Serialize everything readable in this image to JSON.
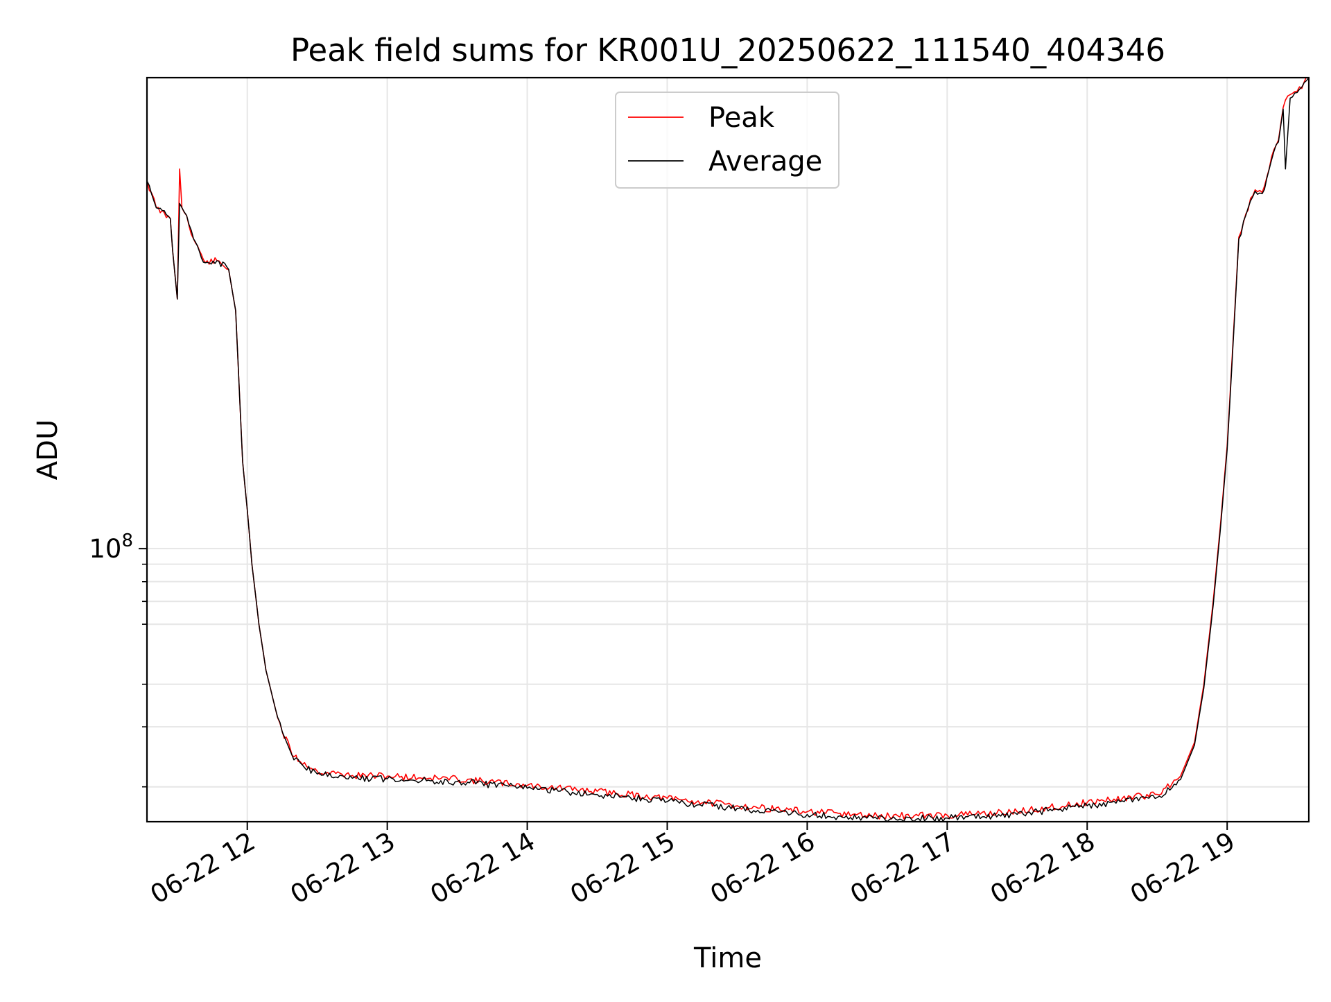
{
  "chart_data": {
    "type": "line",
    "title": "Peak field sums for KR001U_20250622_111540_404346",
    "xlabel": "Time",
    "ylabel": "ADU",
    "y_scale": "log",
    "y_tick_major": {
      "base": "10",
      "exponent": "8",
      "value": 100000000
    },
    "y_minor_ticks": [
      20000000,
      30000000,
      40000000,
      60000000,
      70000000,
      80000000,
      90000000
    ],
    "ylim": [
      15800000,
      2410000000
    ],
    "xlim": [
      "2025-06-22 11:17",
      "2025-06-22 19:35"
    ],
    "x_ticks": [
      {
        "at": "2025-06-22 12:00",
        "label": "06-22 12"
      },
      {
        "at": "2025-06-22 13:00",
        "label": "06-22 13"
      },
      {
        "at": "2025-06-22 14:00",
        "label": "06-22 14"
      },
      {
        "at": "2025-06-22 15:00",
        "label": "06-22 15"
      },
      {
        "at": "2025-06-22 16:00",
        "label": "06-22 16"
      },
      {
        "at": "2025-06-22 17:00",
        "label": "06-22 17"
      },
      {
        "at": "2025-06-22 18:00",
        "label": "06-22 18"
      },
      {
        "at": "2025-06-22 19:00",
        "label": "06-22 19"
      }
    ],
    "grid": true,
    "legend_position": "top-center",
    "series": [
      {
        "name": "Peak",
        "color": "#ff0000",
        "points": [
          [
            "2025-06-22 11:15",
            1300000000
          ],
          [
            "2025-06-22 11:17",
            1200000000
          ],
          [
            "2025-06-22 11:21",
            1000000000
          ],
          [
            "2025-06-22 11:27",
            930000000
          ],
          [
            "2025-06-22 11:28",
            750000000
          ],
          [
            "2025-06-22 11:30",
            540000000
          ],
          [
            "2025-06-22 11:31",
            1300000000
          ],
          [
            "2025-06-22 11:32",
            1000000000
          ],
          [
            "2025-06-22 11:34",
            950000000
          ],
          [
            "2025-06-22 11:37",
            810000000
          ],
          [
            "2025-06-22 11:42",
            690000000
          ],
          [
            "2025-06-22 11:47",
            700000000
          ],
          [
            "2025-06-22 11:52",
            660000000
          ],
          [
            "2025-06-22 11:55",
            500000000
          ],
          [
            "2025-06-22 11:58",
            180000000
          ],
          [
            "2025-06-22 12:00",
            130000000
          ],
          [
            "2025-06-22 12:02",
            90000000
          ],
          [
            "2025-06-22 12:05",
            60000000
          ],
          [
            "2025-06-22 12:08",
            44000000
          ],
          [
            "2025-06-22 12:12",
            34000000
          ],
          [
            "2025-06-22 12:15",
            29000000
          ],
          [
            "2025-06-22 12:20",
            24500000
          ],
          [
            "2025-06-22 12:30",
            22200000
          ],
          [
            "2025-06-22 12:45",
            21600000
          ],
          [
            "2025-06-22 13:00",
            21500000
          ],
          [
            "2025-06-22 13:30",
            21100000
          ],
          [
            "2025-06-22 14:00",
            20200000
          ],
          [
            "2025-06-22 14:30",
            19400000
          ],
          [
            "2025-06-22 15:00",
            18500000
          ],
          [
            "2025-06-22 15:30",
            17600000
          ],
          [
            "2025-06-22 16:00",
            16900000
          ],
          [
            "2025-06-22 16:30",
            16400000
          ],
          [
            "2025-06-22 17:00",
            16500000
          ],
          [
            "2025-06-22 17:30",
            16900000
          ],
          [
            "2025-06-22 18:00",
            18000000
          ],
          [
            "2025-06-22 18:30",
            19000000
          ],
          [
            "2025-06-22 18:40",
            21500000
          ],
          [
            "2025-06-22 18:46",
            27000000
          ],
          [
            "2025-06-22 18:50",
            40000000
          ],
          [
            "2025-06-22 18:54",
            70000000
          ],
          [
            "2025-06-22 18:57",
            115000000
          ],
          [
            "2025-06-22 19:00",
            200000000
          ],
          [
            "2025-06-22 19:02",
            350000000
          ],
          [
            "2025-06-22 19:05",
            820000000
          ],
          [
            "2025-06-22 19:08",
            960000000
          ],
          [
            "2025-06-22 19:12",
            1130000000
          ],
          [
            "2025-06-22 19:15",
            1110000000
          ],
          [
            "2025-06-22 19:17",
            1230000000
          ],
          [
            "2025-06-22 19:20",
            1480000000
          ],
          [
            "2025-06-22 19:22",
            1580000000
          ],
          [
            "2025-06-22 19:24",
            1970000000
          ],
          [
            "2025-06-22 19:27",
            2150000000
          ],
          [
            "2025-06-22 19:30",
            2200000000
          ],
          [
            "2025-06-22 19:33",
            2340000000
          ],
          [
            "2025-06-22 19:35",
            2420000000
          ]
        ]
      },
      {
        "name": "Average",
        "color": "#000000",
        "points": [
          [
            "2025-06-22 11:15",
            1300000000
          ],
          [
            "2025-06-22 11:17",
            1200000000
          ],
          [
            "2025-06-22 11:21",
            1000000000
          ],
          [
            "2025-06-22 11:27",
            930000000
          ],
          [
            "2025-06-22 11:28",
            750000000
          ],
          [
            "2025-06-22 11:30",
            540000000
          ],
          [
            "2025-06-22 11:31",
            1030000000
          ],
          [
            "2025-06-22 11:32",
            1000000000
          ],
          [
            "2025-06-22 11:34",
            950000000
          ],
          [
            "2025-06-22 11:37",
            810000000
          ],
          [
            "2025-06-22 11:42",
            690000000
          ],
          [
            "2025-06-22 11:47",
            700000000
          ],
          [
            "2025-06-22 11:52",
            660000000
          ],
          [
            "2025-06-22 11:55",
            500000000
          ],
          [
            "2025-06-22 11:58",
            180000000
          ],
          [
            "2025-06-22 12:00",
            130000000
          ],
          [
            "2025-06-22 12:02",
            90000000
          ],
          [
            "2025-06-22 12:05",
            60000000
          ],
          [
            "2025-06-22 12:08",
            44000000
          ],
          [
            "2025-06-22 12:12",
            34000000
          ],
          [
            "2025-06-22 12:15",
            29000000
          ],
          [
            "2025-06-22 12:20",
            24000000
          ],
          [
            "2025-06-22 12:30",
            21800000
          ],
          [
            "2025-06-22 12:45",
            21200000
          ],
          [
            "2025-06-22 13:00",
            21100000
          ],
          [
            "2025-06-22 13:30",
            20700000
          ],
          [
            "2025-06-22 14:00",
            19800000
          ],
          [
            "2025-06-22 14:30",
            19000000
          ],
          [
            "2025-06-22 15:00",
            18100000
          ],
          [
            "2025-06-22 15:30",
            17300000
          ],
          [
            "2025-06-22 16:00",
            16600000
          ],
          [
            "2025-06-22 16:30",
            16100000
          ],
          [
            "2025-06-22 17:00",
            16200000
          ],
          [
            "2025-06-22 17:30",
            16600000
          ],
          [
            "2025-06-22 18:00",
            17600000
          ],
          [
            "2025-06-22 18:30",
            18600000
          ],
          [
            "2025-06-22 18:40",
            21000000
          ],
          [
            "2025-06-22 18:46",
            26500000
          ],
          [
            "2025-06-22 18:50",
            39000000
          ],
          [
            "2025-06-22 18:54",
            68000000
          ],
          [
            "2025-06-22 18:57",
            112000000
          ],
          [
            "2025-06-22 19:00",
            195000000
          ],
          [
            "2025-06-22 19:02",
            340000000
          ],
          [
            "2025-06-22 19:05",
            810000000
          ],
          [
            "2025-06-22 19:08",
            950000000
          ],
          [
            "2025-06-22 19:12",
            1120000000
          ],
          [
            "2025-06-22 19:15",
            1100000000
          ],
          [
            "2025-06-22 19:17",
            1220000000
          ],
          [
            "2025-06-22 19:20",
            1460000000
          ],
          [
            "2025-06-22 19:22",
            1560000000
          ],
          [
            "2025-06-22 19:24",
            1950000000
          ],
          [
            "2025-06-22 19:25",
            1300000000
          ],
          [
            "2025-06-22 19:27",
            2100000000
          ],
          [
            "2025-06-22 19:30",
            2180000000
          ],
          [
            "2025-06-22 19:33",
            2330000000
          ],
          [
            "2025-06-22 19:35",
            2410000000
          ]
        ]
      }
    ]
  }
}
